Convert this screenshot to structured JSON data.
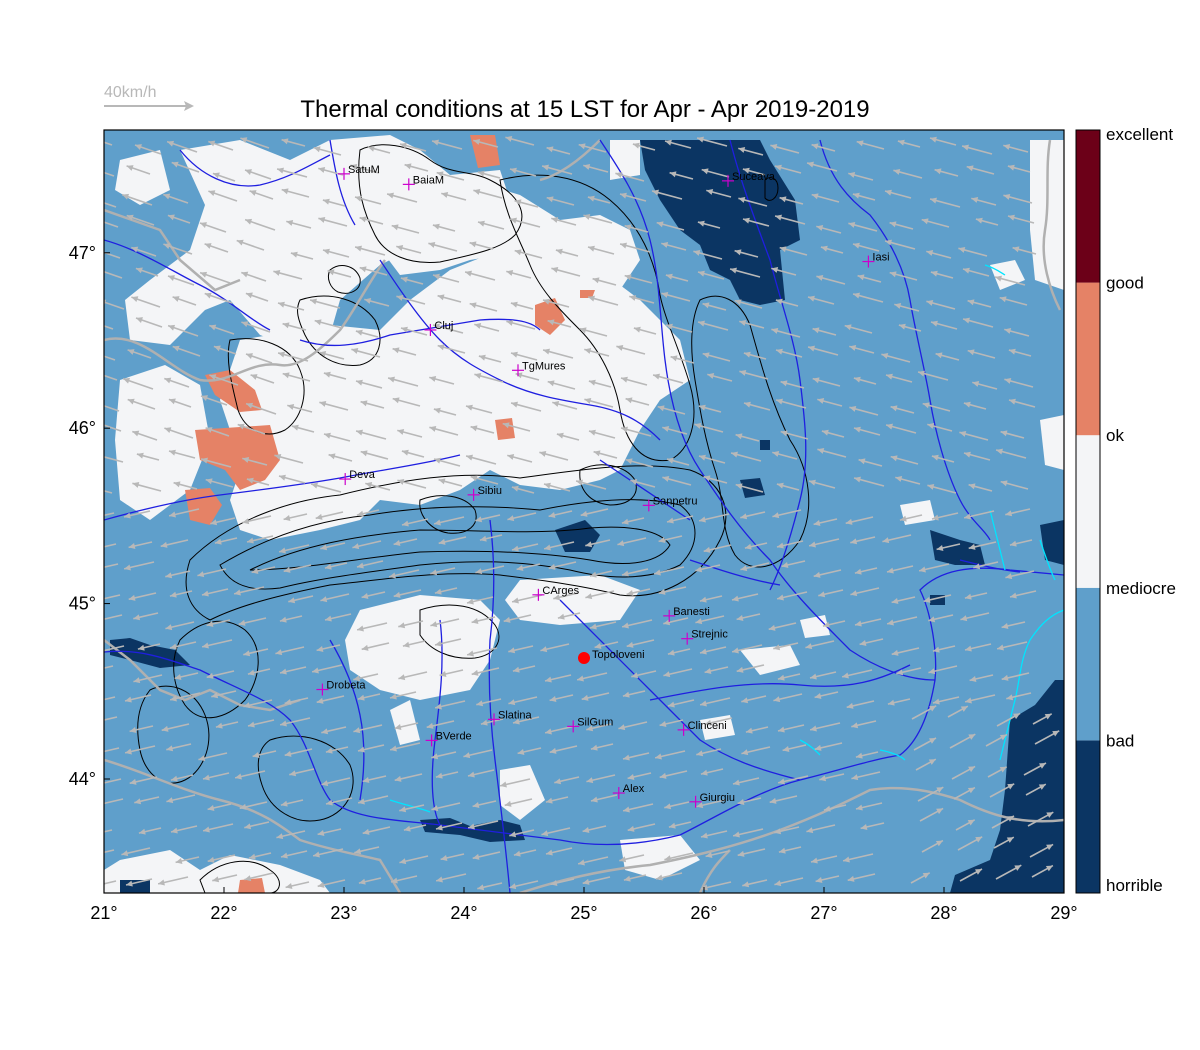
{
  "title": "Thermal conditions at 15 LST for Apr - Apr  2019-2019",
  "wind_reference": {
    "label": "40km/h"
  },
  "x_ticks": [
    "21°",
    "22°",
    "23°",
    "24°",
    "25°",
    "26°",
    "27°",
    "28°",
    "29°"
  ],
  "y_ticks": [
    "44°",
    "45°",
    "46°",
    "47°"
  ],
  "colorbar": {
    "classes": [
      {
        "label": "horrible",
        "color": "#0b3563"
      },
      {
        "label": "bad",
        "color": "#5f9fcb"
      },
      {
        "label": "mediocre",
        "color": "#f4f5f7"
      },
      {
        "label": "ok",
        "color": "#e58266"
      },
      {
        "label": "good",
        "color": "#6c0018"
      }
    ],
    "labels": [
      "horrible",
      "bad",
      "mediocre",
      "ok",
      "good",
      "excellent"
    ]
  },
  "colors": {
    "river": "#1f1fe0",
    "border": "#b0b0b0",
    "coast": "#00e5ff",
    "contour": "#000000",
    "arrow": "#b8b8b8",
    "city_marker": "#cc00cc",
    "target_marker": "#ff0000"
  },
  "map": {
    "lon_range": [
      21,
      29
    ],
    "lat_range": [
      43.35,
      47.7
    ],
    "cities": [
      {
        "name": "SatuM",
        "lon": 23.0,
        "lat": 47.45
      },
      {
        "name": "BaiaM",
        "lon": 23.54,
        "lat": 47.39
      },
      {
        "name": "Suceava",
        "lon": 26.2,
        "lat": 47.41
      },
      {
        "name": "Iasi",
        "lon": 27.37,
        "lat": 46.95
      },
      {
        "name": "Cluj",
        "lon": 23.72,
        "lat": 46.56
      },
      {
        "name": "TgMures",
        "lon": 24.45,
        "lat": 46.33
      },
      {
        "name": "Deva",
        "lon": 23.01,
        "lat": 45.71
      },
      {
        "name": "Sibiu",
        "lon": 24.08,
        "lat": 45.62
      },
      {
        "name": "Sanpetru",
        "lon": 25.54,
        "lat": 45.56
      },
      {
        "name": "CArges",
        "lon": 24.62,
        "lat": 45.05
      },
      {
        "name": "Banesti",
        "lon": 25.71,
        "lat": 44.93
      },
      {
        "name": "Strejnic",
        "lon": 25.86,
        "lat": 44.8
      },
      {
        "name": "Drobeta",
        "lon": 22.82,
        "lat": 44.51
      },
      {
        "name": "Slatina",
        "lon": 24.25,
        "lat": 44.34
      },
      {
        "name": "SilGum",
        "lon": 24.91,
        "lat": 44.3
      },
      {
        "name": "Clinceni",
        "lon": 25.83,
        "lat": 44.28
      },
      {
        "name": "BVerde",
        "lon": 23.73,
        "lat": 44.22
      },
      {
        "name": "Alex",
        "lon": 25.29,
        "lat": 43.92
      },
      {
        "name": "Giurgiu",
        "lon": 25.93,
        "lat": 43.87
      }
    ],
    "target": {
      "name": "Topoloveni",
      "lon": 25.0,
      "lat": 44.69
    }
  }
}
